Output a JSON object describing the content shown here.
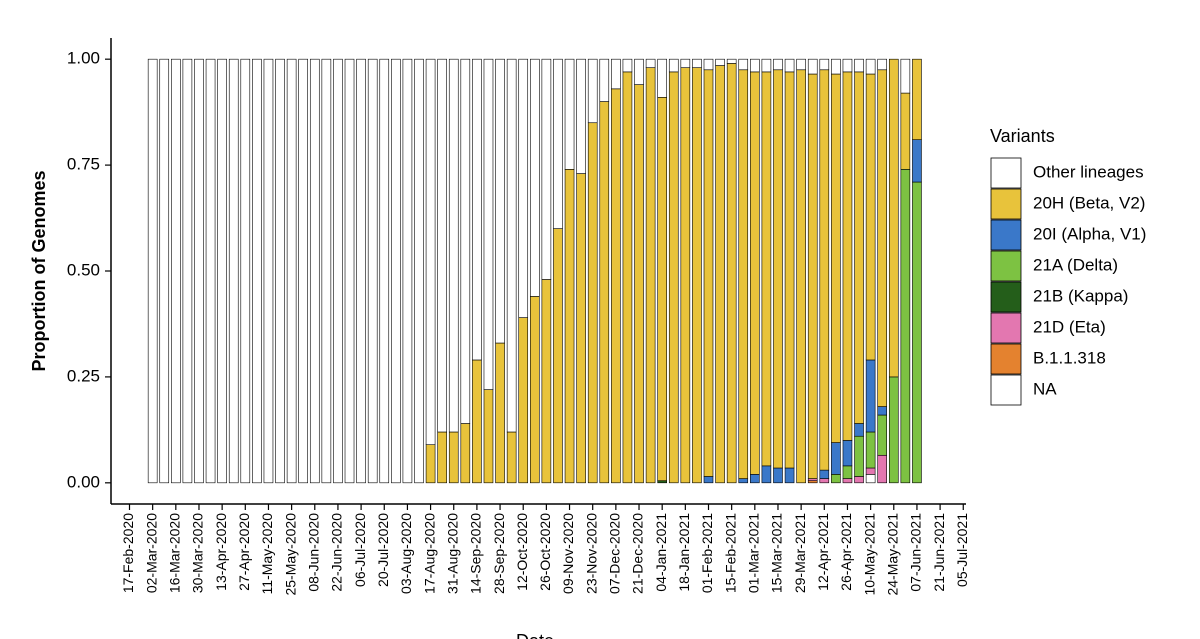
{
  "chart_data": {
    "type": "bar",
    "stacked": true,
    "y_label": "Proportion of Genomes",
    "x_label": "Date",
    "legend_title": "Variants",
    "categories": [
      "17-Feb-2020",
      null,
      "02-Mar-2020",
      null,
      "16-Mar-2020",
      null,
      "30-Mar-2020",
      null,
      "13-Apr-2020",
      null,
      "27-Apr-2020",
      null,
      "11-May-2020",
      null,
      "25-May-2020",
      null,
      "08-Jun-2020",
      null,
      "22-Jun-2020",
      null,
      "06-Jul-2020",
      null,
      "20-Jul-2020",
      null,
      "03-Aug-2020",
      null,
      "17-Aug-2020",
      null,
      "31-Aug-2020",
      null,
      "14-Sep-2020",
      null,
      "28-Sep-2020",
      null,
      "12-Oct-2020",
      null,
      "26-Oct-2020",
      null,
      "09-Nov-2020",
      null,
      "23-Nov-2020",
      null,
      "07-Dec-2020",
      null,
      "21-Dec-2020",
      null,
      "04-Jan-2021",
      null,
      "18-Jan-2021",
      null,
      "01-Feb-2021",
      null,
      "15-Feb-2021",
      null,
      "01-Mar-2021",
      null,
      "15-Mar-2021",
      null,
      "29-Mar-2021",
      null,
      "12-Apr-2021",
      null,
      "26-Apr-2021",
      null,
      "10-May-2021",
      null,
      "24-May-2021",
      null,
      "07-Jun-2021",
      null,
      "21-Jun-2021",
      null,
      "05-Jul-2021"
    ],
    "series": [
      {
        "name": "Other lineages",
        "color": "#ffffff",
        "values": [
          null,
          null,
          1,
          1,
          1,
          1,
          1,
          1,
          1,
          1,
          1,
          1,
          1,
          1,
          1,
          1,
          1,
          1,
          1,
          1,
          1,
          1,
          1,
          1,
          1,
          1,
          0.91,
          0.88,
          0.88,
          0.86,
          0.71,
          0.78,
          0.67,
          0.88,
          0.61,
          0.56,
          0.52,
          0.4,
          0.26,
          0.27,
          0.15,
          0.1,
          0.07,
          0.03,
          0.06,
          0.02,
          0.09,
          0.03,
          0.02,
          0.02,
          0.025,
          0.015,
          0.01,
          0.025,
          0.03,
          0.03,
          0.025,
          0.03,
          0.025,
          0.035,
          0.025,
          0.035,
          0.03,
          0.03,
          0.035,
          0.025,
          0,
          0.08,
          0,
          null,
          null,
          null,
          null
        ]
      },
      {
        "name": "20H (Beta, V2)",
        "color": "#e8c33b",
        "values": [
          null,
          null,
          0,
          0,
          0,
          0,
          0,
          0,
          0,
          0,
          0,
          0,
          0,
          0,
          0,
          0,
          0,
          0,
          0,
          0,
          0,
          0,
          0,
          0,
          0,
          0,
          0.09,
          0.12,
          0.12,
          0.14,
          0.29,
          0.22,
          0.33,
          0.12,
          0.39,
          0.44,
          0.48,
          0.6,
          0.74,
          0.73,
          0.85,
          0.9,
          0.93,
          0.97,
          0.94,
          0.98,
          0.905,
          0.97,
          0.98,
          0.98,
          0.96,
          0.985,
          0.99,
          0.965,
          0.95,
          0.93,
          0.94,
          0.935,
          0.975,
          0.955,
          0.945,
          0.87,
          0.87,
          0.83,
          0.675,
          0.795,
          0.75,
          0.18,
          0.19,
          null,
          null,
          null,
          null
        ]
      },
      {
        "name": "20I (Alpha, V1)",
        "color": "#3a78c9",
        "values": [
          null,
          null,
          0,
          0,
          0,
          0,
          0,
          0,
          0,
          0,
          0,
          0,
          0,
          0,
          0,
          0,
          0,
          0,
          0,
          0,
          0,
          0,
          0,
          0,
          0,
          0,
          0,
          0,
          0,
          0,
          0,
          0,
          0,
          0,
          0,
          0,
          0,
          0,
          0,
          0,
          0,
          0,
          0,
          0,
          0,
          0,
          0,
          0,
          0,
          0,
          0.015,
          0,
          0,
          0.01,
          0.02,
          0.04,
          0.035,
          0.035,
          0,
          0,
          0.02,
          0.075,
          0.06,
          0.03,
          0.17,
          0.02,
          0,
          0,
          0.1,
          null,
          null,
          null,
          null
        ]
      },
      {
        "name": "21A (Delta)",
        "color": "#7dc242",
        "values": [
          null,
          null,
          0,
          0,
          0,
          0,
          0,
          0,
          0,
          0,
          0,
          0,
          0,
          0,
          0,
          0,
          0,
          0,
          0,
          0,
          0,
          0,
          0,
          0,
          0,
          0,
          0,
          0,
          0,
          0,
          0,
          0,
          0,
          0,
          0,
          0,
          0,
          0,
          0,
          0,
          0,
          0,
          0,
          0,
          0,
          0,
          0,
          0,
          0,
          0,
          0,
          0,
          0,
          0,
          0,
          0,
          0,
          0,
          0,
          0,
          0,
          0.02,
          0.03,
          0.095,
          0.085,
          0.095,
          0.25,
          0.74,
          0.71,
          null,
          null,
          null,
          null
        ]
      },
      {
        "name": "21B (Kappa)",
        "color": "#245e1a",
        "values": [
          null,
          null,
          0,
          0,
          0,
          0,
          0,
          0,
          0,
          0,
          0,
          0,
          0,
          0,
          0,
          0,
          0,
          0,
          0,
          0,
          0,
          0,
          0,
          0,
          0,
          0,
          0,
          0,
          0,
          0,
          0,
          0,
          0,
          0,
          0,
          0,
          0,
          0,
          0,
          0,
          0,
          0,
          0,
          0,
          0,
          0,
          0.005,
          0,
          0,
          0,
          0,
          0,
          0,
          0,
          0,
          0,
          0,
          0,
          0,
          0,
          0,
          0,
          0,
          0,
          0,
          0,
          0,
          0,
          0,
          null,
          null,
          null,
          null
        ]
      },
      {
        "name": "21D (Eta)",
        "color": "#e377b0",
        "values": [
          null,
          null,
          0,
          0,
          0,
          0,
          0,
          0,
          0,
          0,
          0,
          0,
          0,
          0,
          0,
          0,
          0,
          0,
          0,
          0,
          0,
          0,
          0,
          0,
          0,
          0,
          0,
          0,
          0,
          0,
          0,
          0,
          0,
          0,
          0,
          0,
          0,
          0,
          0,
          0,
          0,
          0,
          0,
          0,
          0,
          0,
          0,
          0,
          0,
          0,
          0,
          0,
          0,
          0,
          0,
          0,
          0,
          0,
          0,
          0.005,
          0.01,
          0,
          0.01,
          0.015,
          0.015,
          0.065,
          0,
          0,
          0,
          null,
          null,
          null,
          null
        ]
      },
      {
        "name": "B.1.1.318",
        "color": "#e4822f",
        "values": [
          null,
          null,
          0,
          0,
          0,
          0,
          0,
          0,
          0,
          0,
          0,
          0,
          0,
          0,
          0,
          0,
          0,
          0,
          0,
          0,
          0,
          0,
          0,
          0,
          0,
          0,
          0,
          0,
          0,
          0,
          0,
          0,
          0,
          0,
          0,
          0,
          0,
          0,
          0,
          0,
          0,
          0,
          0,
          0,
          0,
          0,
          0,
          0,
          0,
          0,
          0,
          0,
          0,
          0,
          0,
          0,
          0,
          0,
          0,
          0.005,
          0,
          0,
          0,
          0,
          0,
          0,
          0,
          0,
          0,
          null,
          null,
          null,
          null
        ]
      },
      {
        "name": "NA",
        "color": "#ffffff",
        "values": [
          null,
          null,
          0,
          0,
          0,
          0,
          0,
          0,
          0,
          0,
          0,
          0,
          0,
          0,
          0,
          0,
          0,
          0,
          0,
          0,
          0,
          0,
          0,
          0,
          0,
          0,
          0,
          0,
          0,
          0,
          0,
          0,
          0,
          0,
          0,
          0,
          0,
          0,
          0,
          0,
          0,
          0,
          0,
          0,
          0,
          0,
          0,
          0,
          0,
          0,
          0,
          0,
          0,
          0,
          0,
          0,
          0,
          0,
          0,
          0,
          0,
          0,
          0,
          0,
          0.02,
          0,
          0,
          0,
          0,
          null,
          null,
          null,
          null
        ]
      }
    ],
    "ylim": [
      -0.05,
      1.05
    ],
    "yticks": [
      {
        "value": 0,
        "label": "0.00"
      },
      {
        "value": 0.25,
        "label": "0.25"
      },
      {
        "value": 0.5,
        "label": "0.50"
      },
      {
        "value": 0.75,
        "label": "0.75"
      },
      {
        "value": 1,
        "label": "1.00"
      }
    ]
  }
}
